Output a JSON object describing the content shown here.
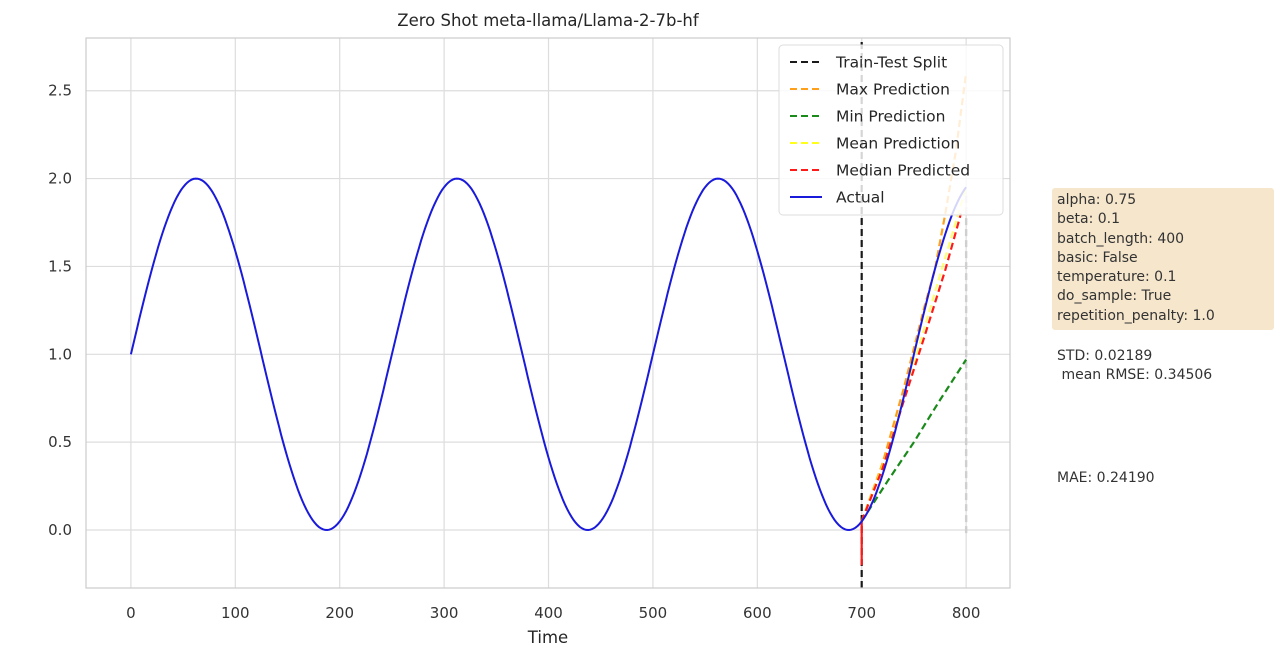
{
  "chart_data": {
    "type": "line",
    "title": "Zero Shot meta-llama/Llama-2-7b-hf",
    "xlabel": "Time",
    "ylabel": "",
    "xlim": [
      -43,
      842
    ],
    "ylim": [
      -0.33,
      2.8
    ],
    "x_ticks": [
      "0",
      "100",
      "200",
      "300",
      "400",
      "500",
      "600",
      "700",
      "800"
    ],
    "y_ticks": [
      "0.0",
      "0.5",
      "1.0",
      "1.5",
      "2.0",
      "2.5"
    ],
    "grid": true,
    "legend_position": "top-right",
    "train_test_split": 700,
    "series": [
      {
        "name": "Train-Test Split",
        "style": "dashed",
        "color": "#1a1a1a",
        "x": [
          700,
          700
        ],
        "y": [
          -0.33,
          2.8
        ]
      },
      {
        "name": "Max Prediction",
        "style": "dashed",
        "color": "#ff9f1a",
        "x": [
          700,
          720,
          740,
          760,
          770,
          780,
          790,
          800
        ],
        "y": [
          0.05,
          0.38,
          0.8,
          1.27,
          1.48,
          1.8,
          2.15,
          2.6
        ]
      },
      {
        "name": "Min Prediction",
        "style": "dashed",
        "color": "#1a8a1a",
        "x": [
          700,
          725,
          750,
          775,
          800
        ],
        "y": [
          0.05,
          0.28,
          0.5,
          0.74,
          0.97
        ]
      },
      {
        "name": "Mean Prediction",
        "style": "dashed",
        "color": "#ffff1a",
        "x": [
          700,
          725,
          750,
          775,
          800
        ],
        "y": [
          0.05,
          0.45,
          0.95,
          1.45,
          1.95
        ]
      },
      {
        "name": "Median Predicted",
        "style": "dashed",
        "color": "#ff1a1a",
        "x": [
          700,
          700,
          700,
          720,
          740,
          760,
          780,
          795
        ],
        "y": [
          0.05,
          -0.2,
          0.05,
          0.35,
          0.73,
          1.1,
          1.48,
          1.8
        ]
      },
      {
        "name": "Actual",
        "style": "solid",
        "color": "#1a1adb",
        "function": "1 + sin(2*pi*x/250)",
        "x_range": [
          0,
          800
        ]
      }
    ]
  },
  "side_panel": {
    "params": [
      "alpha: 0.75",
      "beta: 0.1",
      "batch_length: 400",
      "basic: False",
      "temperature: 0.1",
      "do_sample: True",
      "repetition_penalty: 1.0"
    ],
    "std_text": "STD: 0.02189",
    "rmse_text": " mean RMSE: 0.34506",
    "mae_text": "MAE: 0.24190",
    "box_color": "#f5e6cc"
  }
}
